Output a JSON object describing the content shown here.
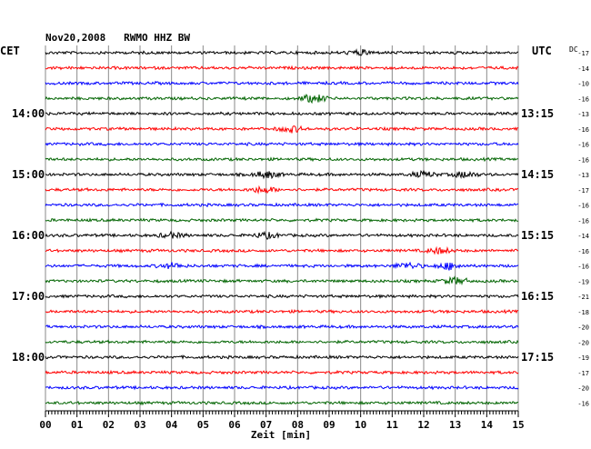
{
  "chart_data": {
    "type": "line",
    "title": "Nov20,2008   RWMO HHZ BW",
    "left_axis_label": "CET",
    "right_axis_label": "UTC",
    "dc_header": "DC",
    "xlabel": "Zeit [min]",
    "x_ticks": [
      "00",
      "01",
      "02",
      "03",
      "04",
      "05",
      "06",
      "07",
      "08",
      "09",
      "10",
      "11",
      "12",
      "13",
      "14",
      "15"
    ],
    "x_range": [
      0,
      15
    ],
    "grid": "vertical per minute",
    "left_hour_labels": [
      {
        "trace": 4,
        "text": "14:00"
      },
      {
        "trace": 8,
        "text": "15:00"
      },
      {
        "trace": 12,
        "text": "16:00"
      },
      {
        "trace": 16,
        "text": "17:00"
      },
      {
        "trace": 20,
        "text": "18:00"
      }
    ],
    "right_hour_labels": [
      {
        "trace": 4,
        "text": "13:15"
      },
      {
        "trace": 8,
        "text": "14:15"
      },
      {
        "trace": 12,
        "text": "15:15"
      },
      {
        "trace": 16,
        "text": "16:15"
      },
      {
        "trace": 20,
        "text": "17:15"
      }
    ],
    "dc_offsets": [
      "-17",
      "-14",
      "-10",
      "-16",
      "-13",
      "-16",
      "-16",
      "-16",
      "-13",
      "-17",
      "-16",
      "-16",
      "-14",
      "-16",
      "-16",
      "-19",
      "-21",
      "-18",
      "-20",
      "-20",
      "-19",
      "-17",
      "-20",
      "-16"
    ],
    "trace_colors": [
      "#000000",
      "#ff0000",
      "#0000ff",
      "#006400"
    ],
    "trace_count": 24,
    "events": [
      {
        "trace": 0,
        "minute": 10.0,
        "strength": 1.6
      },
      {
        "trace": 3,
        "minute": 8.5,
        "strength": 2.6
      },
      {
        "trace": 5,
        "minute": 7.8,
        "strength": 2.0
      },
      {
        "trace": 8,
        "minute": 7.0,
        "strength": 2.2
      },
      {
        "trace": 8,
        "minute": 12.0,
        "strength": 1.8
      },
      {
        "trace": 8,
        "minute": 13.3,
        "strength": 1.8
      },
      {
        "trace": 9,
        "minute": 6.9,
        "strength": 2.0
      },
      {
        "trace": 12,
        "minute": 4.0,
        "strength": 1.6
      },
      {
        "trace": 12,
        "minute": 7.0,
        "strength": 1.7
      },
      {
        "trace": 13,
        "minute": 12.5,
        "strength": 1.8
      },
      {
        "trace": 14,
        "minute": 11.5,
        "strength": 2.0
      },
      {
        "trace": 14,
        "minute": 12.8,
        "strength": 2.2
      },
      {
        "trace": 14,
        "minute": 4.0,
        "strength": 1.6
      },
      {
        "trace": 15,
        "minute": 13.0,
        "strength": 2.2
      }
    ]
  }
}
